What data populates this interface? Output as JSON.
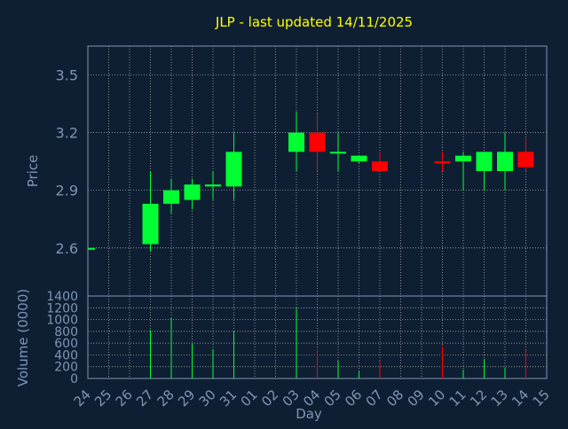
{
  "colors": {
    "background": "#0f1f33",
    "axis_text": "#7f95b3",
    "title": "#ffff00",
    "grid": "#c0c0c0",
    "up": "#00ff33",
    "down": "#ff0000"
  },
  "chart_data": {
    "type": "candlestick",
    "title": "JLP - last updated 14/11/2025",
    "price_panel": {
      "ylabel": "Price",
      "ylim": [
        2.35,
        3.65
      ],
      "yticks": [
        "2.6",
        "2.9",
        "3.2",
        "3.5"
      ],
      "grid": true
    },
    "volume_panel": {
      "ylabel": "Volume (0000)",
      "ylim": [
        0,
        1400
      ],
      "yticks": [
        "0",
        "200",
        "400",
        "600",
        "800",
        "1000",
        "1200",
        "1400"
      ],
      "grid": true
    },
    "xlabel": "Day",
    "x_ticks": [
      "24",
      "25",
      "26",
      "27",
      "28",
      "29",
      "30",
      "31",
      "01",
      "02",
      "03",
      "04",
      "05",
      "06",
      "07",
      "08",
      "09",
      "10",
      "11",
      "12",
      "13",
      "14",
      "15"
    ],
    "candles": [
      {
        "day": "24",
        "open": 2.6,
        "high": 2.6,
        "low": 2.6,
        "close": 2.6,
        "volume": 0
      },
      {
        "day": "27",
        "open": 2.62,
        "high": 3.0,
        "low": 2.58,
        "close": 2.83,
        "volume": 820
      },
      {
        "day": "28",
        "open": 2.83,
        "high": 2.96,
        "low": 2.78,
        "close": 2.9,
        "volume": 1030
      },
      {
        "day": "29",
        "open": 2.85,
        "high": 2.96,
        "low": 2.8,
        "close": 2.93,
        "volume": 600
      },
      {
        "day": "30",
        "open": 2.92,
        "high": 3.0,
        "low": 2.85,
        "close": 2.93,
        "volume": 500
      },
      {
        "day": "31",
        "open": 2.92,
        "high": 3.2,
        "low": 2.85,
        "close": 3.1,
        "volume": 800
      },
      {
        "day": "03",
        "open": 3.1,
        "high": 3.31,
        "low": 3.0,
        "close": 3.2,
        "volume": 1200
      },
      {
        "day": "04",
        "open": 3.2,
        "high": 3.3,
        "low": 3.0,
        "close": 3.1,
        "volume": 500
      },
      {
        "day": "05",
        "open": 3.1,
        "high": 3.2,
        "low": 3.0,
        "close": 3.1,
        "volume": 300
      },
      {
        "day": "06",
        "open": 3.05,
        "high": 3.08,
        "low": 3.04,
        "close": 3.08,
        "volume": 120
      },
      {
        "day": "07",
        "open": 3.05,
        "high": 3.1,
        "low": 3.0,
        "close": 3.0,
        "volume": 300
      },
      {
        "day": "10",
        "open": 3.05,
        "high": 3.1,
        "low": 3.0,
        "close": 3.04,
        "volume": 550
      },
      {
        "day": "11",
        "open": 3.05,
        "high": 3.1,
        "low": 2.9,
        "close": 3.08,
        "volume": 150
      },
      {
        "day": "12",
        "open": 3.0,
        "high": 3.1,
        "low": 2.9,
        "close": 3.1,
        "volume": 330
      },
      {
        "day": "13",
        "open": 3.0,
        "high": 3.2,
        "low": 2.9,
        "close": 3.1,
        "volume": 190
      },
      {
        "day": "14",
        "open": 3.1,
        "high": 3.17,
        "low": 3.0,
        "close": 3.02,
        "volume": 480
      }
    ]
  }
}
